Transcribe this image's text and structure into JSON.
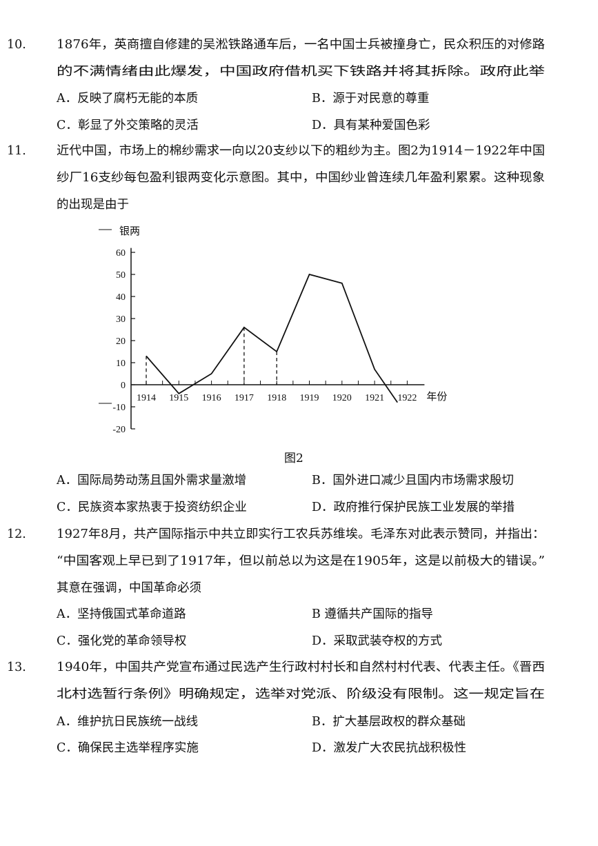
{
  "questions": [
    {
      "number": "10.",
      "lines": [
        "1876年，英商擅自修建的吴淞铁路通车后，一名中国士兵被撞身亡，民众积压的对修路",
        "的不满情绪由此爆发，中国政府借机买下铁路并将其拆除。政府此举"
      ],
      "options": [
        "A．反映了腐朽无能的本质",
        "B．源于对民意的尊重",
        "C．彰显了外交策略的灵活",
        "D．具有某种爱国色彩"
      ]
    },
    {
      "number": "11.",
      "lines": [
        "近代中国，市场上的棉纱需求一向以20支纱以下的粗纱为主。图2为1914－1922年中国",
        "纱厂16支纱每包盈利银两变化示意图。其中，中国纱业曾连续几年盈利累累。这种现象",
        "的出现是由于"
      ],
      "options": [
        "A．国际局势动荡且国外需求量激增",
        "B．国外进口减少且国内市场需求殷切",
        "C．民族资本家热衷于投资纺织企业",
        "D．政府推行保护民族工业发展的举措"
      ]
    },
    {
      "number": "12.",
      "lines": [
        "1927年8月，共产国际指示中共立即实行工农兵苏维埃。毛泽东对此表示赞同，并指出：",
        "“中国客观上早已到了1917年，但以前总以为这是在1905年，这是以前极大的错误。”",
        "其意在强调，中国革命必须"
      ],
      "options": [
        "A．坚持俄国式革命道路",
        "B  遵循共产国际的指导",
        "C．强化党的革命领导权",
        "D．采取武装夺权的方式"
      ]
    },
    {
      "number": "13.",
      "lines": [
        "1940年，中国共产党宣布通过民选产生行政村村长和自然村村代表、代表主任。《晋西",
        "北村选暂行条例》明确规定，选举对党派、阶级没有限制。这一规定旨在"
      ],
      "options": [
        "A．维护抗日民族统一战线",
        "B．扩大基层政权的群众基础",
        "C．确保民主选举程序实施",
        "D．激发广大农民抗战积极性"
      ]
    }
  ],
  "figure_caption": "图2",
  "chart_data": {
    "type": "line",
    "ylabel": "银两",
    "xlabel": "年份",
    "x_ticks": [
      "1914",
      "1915",
      "1916",
      "1917",
      "1918",
      "1919",
      "1920",
      "1921",
      "1922"
    ],
    "y_ticks": [
      "60",
      "50",
      "40",
      "30",
      "20",
      "10",
      "0",
      "-10",
      "-20"
    ],
    "ylim": [
      -20,
      60
    ],
    "xlim": [
      1914,
      1922
    ],
    "points": [
      {
        "x": 1914,
        "y": 13
      },
      {
        "x": 1915,
        "y": -4
      },
      {
        "x": 1916,
        "y": 5
      },
      {
        "x": 1917,
        "y": 26
      },
      {
        "x": 1918,
        "y": 15
      },
      {
        "x": 1919,
        "y": 50
      },
      {
        "x": 1920,
        "y": 46
      },
      {
        "x": 1921,
        "y": 7
      },
      {
        "x": 1921.7,
        "y": -8
      }
    ],
    "dashed_drop_lines_at": [
      1914,
      1917,
      1918
    ],
    "grid": false,
    "line_color": "#111111"
  }
}
